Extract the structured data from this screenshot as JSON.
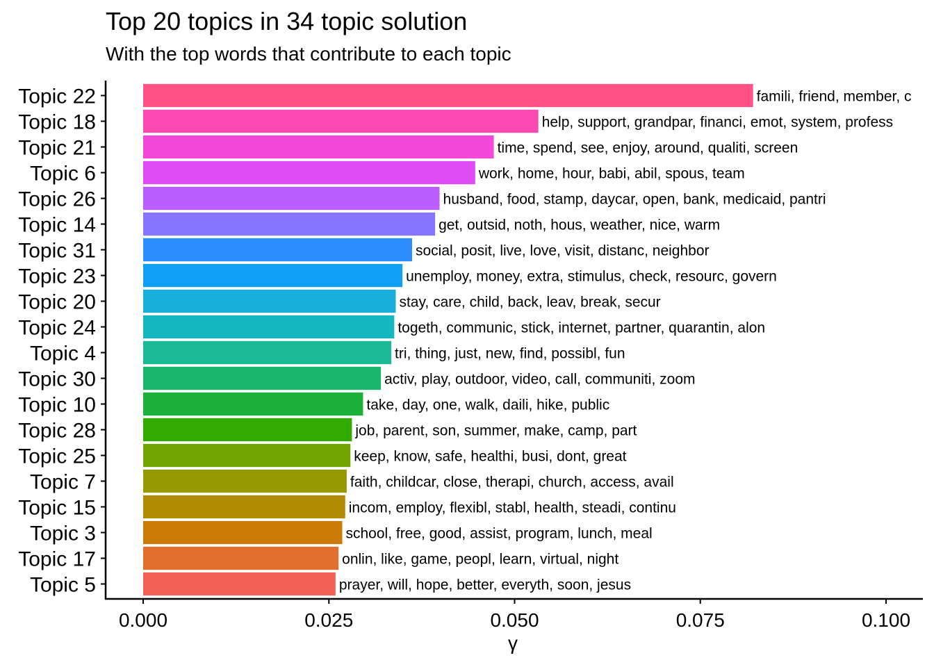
{
  "chart_data": {
    "type": "bar",
    "orientation": "horizontal",
    "title": "Top 20 topics in 34 topic solution",
    "subtitle": "With the top words that contribute to each topic",
    "xlabel": "γ",
    "ylabel": "",
    "xlim": [
      0,
      0.1
    ],
    "xticks": [
      "0.000",
      "0.025",
      "0.050",
      "0.075",
      "0.100"
    ],
    "grid": false,
    "categories": [
      "Topic 22",
      "Topic 18",
      "Topic 21",
      "Topic 6",
      "Topic 26",
      "Topic 14",
      "Topic 31",
      "Topic 23",
      "Topic 20",
      "Topic 24",
      "Topic 4",
      "Topic 30",
      "Topic 10",
      "Topic 28",
      "Topic 25",
      "Topic 7",
      "Topic 15",
      "Topic 3",
      "Topic 17",
      "Topic 5"
    ],
    "values": [
      0.0821,
      0.0532,
      0.0472,
      0.0447,
      0.0399,
      0.0393,
      0.0362,
      0.0349,
      0.034,
      0.0338,
      0.0334,
      0.032,
      0.0296,
      0.0281,
      0.0279,
      0.0274,
      0.0272,
      0.0268,
      0.0263,
      0.0259
    ],
    "labels": [
      "famili, friend, member, c",
      "help, support, grandpar, financi, emot, system, profess",
      "time, spend, see, enjoy, around, qualiti, screen",
      "work, home, hour, babi, abil, spous, team",
      "husband, food, stamp, daycar, open, bank, medicaid, pantri",
      "get, outsid, noth, hous, weather, nice, warm",
      "social, posit, live, love, visit, distanc, neighbor",
      "unemploy, money, extra, stimulus, check, resourc, govern",
      "stay, care, child, back, leav, break, secur",
      "togeth, communic, stick, internet, partner, quarantin, alon",
      "tri, thing, just, new, find, possibl, fun",
      "activ, play, outdoor, video, call, communiti, zoom",
      "take, day, one, walk, daili, hike, public",
      "job, parent, son, summer, make, camp, part",
      "keep, know, safe, healthi, busi, dont, great",
      "faith, childcar, close, therapi, church, access, avail",
      "incom, employ, flexibl, stabl, health, steadi, continu",
      "school, free, good, assist, program, lunch, meal",
      "onlin, like, game, peopl, learn, virtual, night",
      "prayer, will, hope, better, everyth, soon, jesus"
    ],
    "colors": [
      "#FF5286",
      "#FC4AB2",
      "#F347D7",
      "#DF4CF5",
      "#BC5EFF",
      "#8676FF",
      "#2A8CFF",
      "#119FF4",
      "#1AAEDC",
      "#14B7BE",
      "#1ABA97",
      "#1AB66C",
      "#1CB23A",
      "#32AB00",
      "#73A500",
      "#969A00",
      "#B18B00",
      "#CA7B07",
      "#E26F2E",
      "#F36159"
    ],
    "legend": "none"
  }
}
